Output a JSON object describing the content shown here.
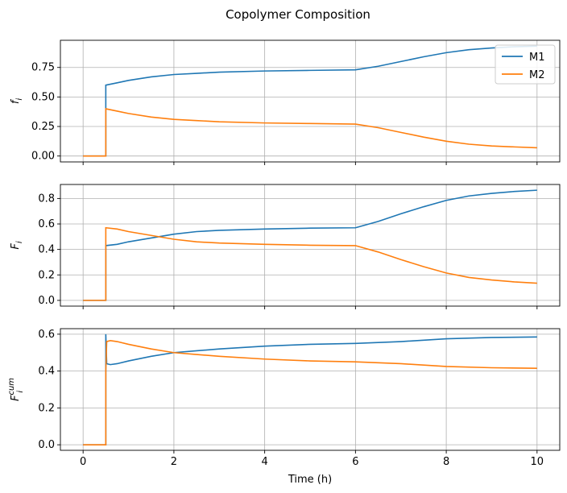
{
  "chart_data": {
    "type": "line",
    "title": "Copolymer Composition",
    "xlabel": "Time (h)",
    "xlim": [
      -0.5,
      10.5
    ],
    "xticks": [
      0,
      2,
      4,
      6,
      8,
      10
    ],
    "grid": true,
    "colors": {
      "M1": "#1f77b4",
      "M2": "#ff7f0e"
    },
    "legend": {
      "location": "top-right",
      "entries": [
        "M1",
        "M2"
      ]
    },
    "panels": [
      {
        "ylabel_base": "f",
        "ylabel_sub": "i",
        "ylabel_sup": "",
        "ylim": [
          -0.05,
          0.98
        ],
        "yticks": [
          0.0,
          0.25,
          0.5,
          0.75
        ],
        "ytick_labels": [
          "0.00",
          "0.25",
          "0.50",
          "0.75"
        ],
        "show_legend": true,
        "series": [
          {
            "name": "M1",
            "x": [
              0,
              0.5,
              0.5,
              0.75,
              1.0,
              1.5,
              2.0,
              2.5,
              3.0,
              4.0,
              5.0,
              6.0,
              6.5,
              7.0,
              7.5,
              8.0,
              8.5,
              9.0,
              9.5,
              10.0
            ],
            "y": [
              0,
              0,
              0.6,
              0.62,
              0.64,
              0.67,
              0.69,
              0.7,
              0.71,
              0.72,
              0.725,
              0.73,
              0.76,
              0.8,
              0.84,
              0.875,
              0.9,
              0.915,
              0.925,
              0.93
            ]
          },
          {
            "name": "M2",
            "x": [
              0,
              0.5,
              0.5,
              0.75,
              1.0,
              1.5,
              2.0,
              2.5,
              3.0,
              4.0,
              5.0,
              6.0,
              6.5,
              7.0,
              7.5,
              8.0,
              8.5,
              9.0,
              9.5,
              10.0
            ],
            "y": [
              0,
              0,
              0.4,
              0.38,
              0.36,
              0.33,
              0.31,
              0.3,
              0.29,
              0.28,
              0.275,
              0.27,
              0.24,
              0.2,
              0.16,
              0.125,
              0.1,
              0.085,
              0.077,
              0.07
            ]
          }
        ]
      },
      {
        "ylabel_base": "F",
        "ylabel_sub": "i",
        "ylabel_sup": "",
        "ylim": [
          -0.045,
          0.91
        ],
        "yticks": [
          0.0,
          0.2,
          0.4,
          0.6,
          0.8
        ],
        "ytick_labels": [
          "0.0",
          "0.2",
          "0.4",
          "0.6",
          "0.8"
        ],
        "show_legend": false,
        "series": [
          {
            "name": "M1",
            "x": [
              0,
              0.5,
              0.5,
              0.75,
              1.0,
              1.5,
              2.0,
              2.5,
              3.0,
              4.0,
              5.0,
              6.0,
              6.5,
              7.0,
              7.5,
              8.0,
              8.5,
              9.0,
              9.5,
              10.0
            ],
            "y": [
              0,
              0,
              0.43,
              0.44,
              0.46,
              0.49,
              0.52,
              0.54,
              0.55,
              0.56,
              0.567,
              0.57,
              0.62,
              0.68,
              0.735,
              0.785,
              0.82,
              0.84,
              0.855,
              0.865
            ]
          },
          {
            "name": "M2",
            "x": [
              0,
              0.5,
              0.5,
              0.75,
              1.0,
              1.5,
              2.0,
              2.5,
              3.0,
              4.0,
              5.0,
              6.0,
              6.5,
              7.0,
              7.5,
              8.0,
              8.5,
              9.0,
              9.5,
              10.0
            ],
            "y": [
              0,
              0,
              0.57,
              0.56,
              0.54,
              0.51,
              0.48,
              0.46,
              0.45,
              0.44,
              0.433,
              0.43,
              0.38,
              0.32,
              0.265,
              0.215,
              0.18,
              0.16,
              0.145,
              0.135
            ]
          }
        ]
      },
      {
        "ylabel_base": "F",
        "ylabel_sub": "i",
        "ylabel_sup": "cum",
        "ylim": [
          -0.03,
          0.63
        ],
        "yticks": [
          0.0,
          0.2,
          0.4,
          0.6
        ],
        "ytick_labels": [
          "0.0",
          "0.2",
          "0.4",
          "0.6"
        ],
        "show_legend": false,
        "series": [
          {
            "name": "M1",
            "x": [
              0,
              0.5,
              0.5,
              0.52,
              0.6,
              0.75,
              1.0,
              1.5,
              2.0,
              2.5,
              3.0,
              4.0,
              5.0,
              6.0,
              7.0,
              8.0,
              9.0,
              10.0
            ],
            "y": [
              0,
              0,
              0.6,
              0.44,
              0.435,
              0.44,
              0.455,
              0.48,
              0.5,
              0.51,
              0.52,
              0.535,
              0.545,
              0.55,
              0.56,
              0.575,
              0.582,
              0.585
            ]
          },
          {
            "name": "M2",
            "x": [
              0,
              0.5,
              0.5,
              0.52,
              0.6,
              0.75,
              1.0,
              1.5,
              2.0,
              2.5,
              3.0,
              4.0,
              5.0,
              6.0,
              7.0,
              8.0,
              9.0,
              10.0
            ],
            "y": [
              0,
              0,
              0.4,
              0.56,
              0.565,
              0.56,
              0.545,
              0.52,
              0.5,
              0.49,
              0.48,
              0.465,
              0.455,
              0.45,
              0.44,
              0.425,
              0.418,
              0.415
            ]
          }
        ]
      }
    ]
  }
}
